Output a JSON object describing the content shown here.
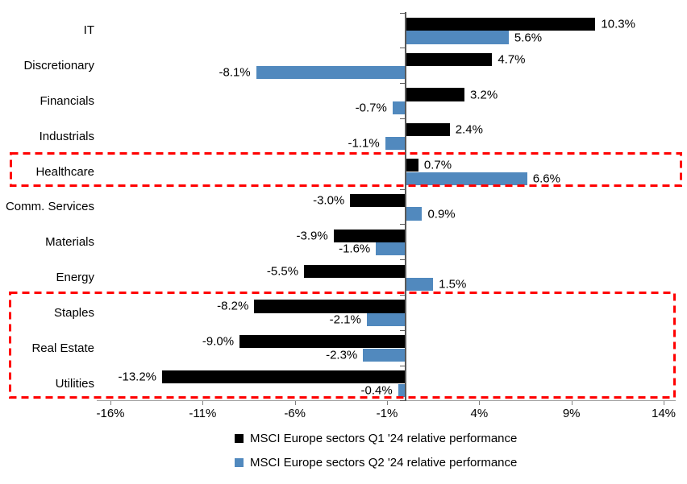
{
  "chart_data": {
    "type": "bar",
    "orientation": "horizontal",
    "title": "",
    "categories": [
      "IT",
      "Discretionary",
      "Financials",
      "Industrials",
      "Healthcare",
      "Comm. Services",
      "Materials",
      "Energy",
      "Staples",
      "Real Estate",
      "Utilities"
    ],
    "series": [
      {
        "name": "MSCI Europe sectors Q1 '24 relative performance",
        "color": "#000000",
        "values": [
          10.3,
          4.7,
          3.2,
          2.4,
          0.7,
          -3.0,
          -3.9,
          -5.5,
          -8.2,
          -9.0,
          -13.2
        ],
        "labels": [
          "10.3%",
          "4.7%",
          "3.2%",
          "2.4%",
          "0.7%",
          "-3.0%",
          "-3.9%",
          "-5.5%",
          "-8.2%",
          "-9.0%",
          "-13.2%"
        ]
      },
      {
        "name": "MSCI Europe sectors Q2 '24 relative performance",
        "color": "#5189BE",
        "values": [
          5.6,
          -8.1,
          -0.7,
          -1.1,
          6.6,
          0.9,
          -1.6,
          1.5,
          -2.1,
          -2.3,
          -0.4
        ],
        "labels": [
          "5.6%",
          "-8.1%",
          "-0.7%",
          "-1.1%",
          "6.6%",
          "0.9%",
          "-1.6%",
          "1.5%",
          "-2.1%",
          "-2.3%",
          "-0.4%"
        ]
      }
    ],
    "x_axis": {
      "min": -16,
      "max": 14,
      "ticks": [
        {
          "value": -16,
          "label": "-16%"
        },
        {
          "value": -11,
          "label": "-11%"
        },
        {
          "value": -6,
          "label": "-6%"
        },
        {
          "value": -1,
          "label": "-1%"
        },
        {
          "value": 4,
          "label": "4%"
        },
        {
          "value": 9,
          "label": "9%"
        },
        {
          "value": 14,
          "label": "14%"
        }
      ]
    },
    "legend_position": "bottom",
    "grid": false,
    "highlights": [
      {
        "rows": [
          "Healthcare"
        ],
        "color": "#FF0000",
        "style": "dashed"
      },
      {
        "rows": [
          "Staples",
          "Real Estate",
          "Utilities"
        ],
        "color": "#FF0000",
        "style": "dashed"
      }
    ]
  }
}
